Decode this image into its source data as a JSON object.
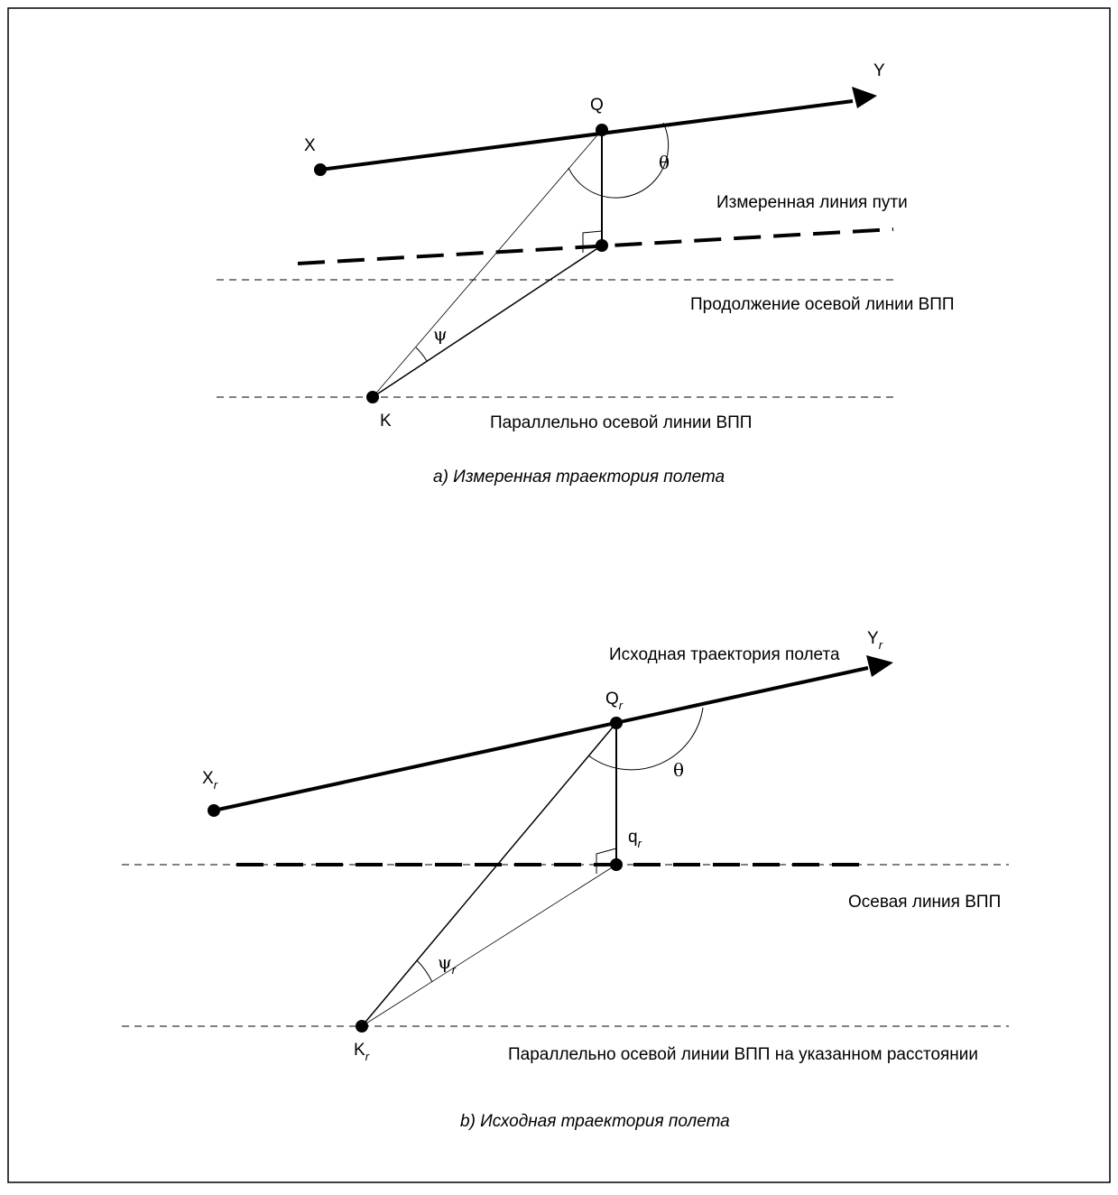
{
  "diagram_a": {
    "points": {
      "x": "X",
      "y": "Y",
      "q": "Q",
      "k": "K"
    },
    "angles": {
      "theta": "θ",
      "psi": "ψ"
    },
    "labels": {
      "measured_track": "Измеренная линия пути",
      "centerline_extension": "Продолжение осевой линии ВПП",
      "parallel_centerline": "Параллельно осевой линии ВПП"
    },
    "caption": "a) Измеренная траектория полета"
  },
  "diagram_b": {
    "points": {
      "x": "X",
      "y": "Y",
      "q": "Q",
      "q_small": "q",
      "k": "K",
      "subscript": "r"
    },
    "angles": {
      "theta": "θ",
      "psi": "ψ"
    },
    "labels": {
      "reference_path": "Исходная траектория полета",
      "runway_centerline": "Осевая линия ВПП",
      "parallel_at_distance": "Параллельно осевой линии ВПП на указанном расстоянии"
    },
    "caption": "b) Исходная траектория полета"
  }
}
